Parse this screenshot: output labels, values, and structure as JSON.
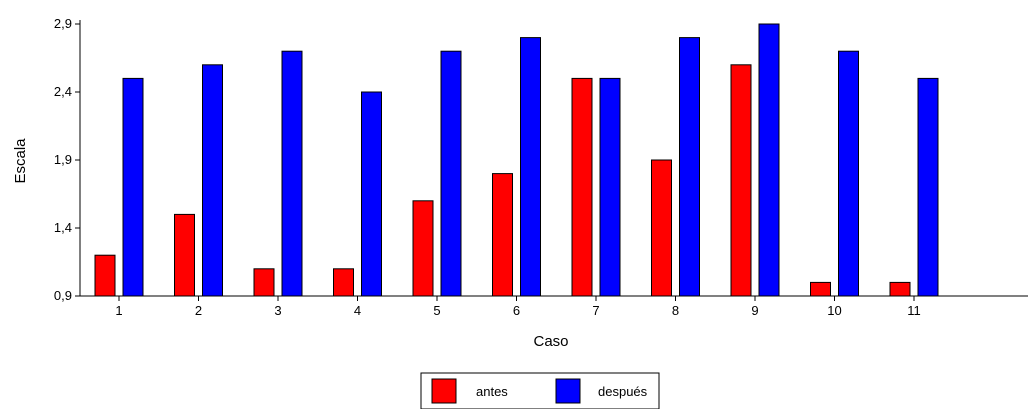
{
  "chart_data": {
    "type": "bar",
    "xlabel": "Caso",
    "ylabel": "Escala",
    "categories": [
      "1",
      "2",
      "3",
      "4",
      "5",
      "6",
      "7",
      "8",
      "9",
      "10",
      "11"
    ],
    "series": [
      {
        "name": "antes",
        "color": "#ff0000",
        "values": [
          1.2,
          1.5,
          1.1,
          1.1,
          1.6,
          1.8,
          2.5,
          1.9,
          2.6,
          1.0,
          1.0
        ]
      },
      {
        "name": "después",
        "color": "#0000ff",
        "values": [
          2.5,
          2.6,
          2.7,
          2.4,
          2.7,
          2.8,
          2.5,
          2.8,
          2.9,
          2.7,
          2.5
        ]
      }
    ],
    "ylim": [
      0.9,
      2.9
    ],
    "yticks": [
      "0,9",
      "1,4",
      "1,9",
      "2,4",
      "2,9"
    ],
    "grid": false,
    "legend_position": "bottom-center"
  }
}
